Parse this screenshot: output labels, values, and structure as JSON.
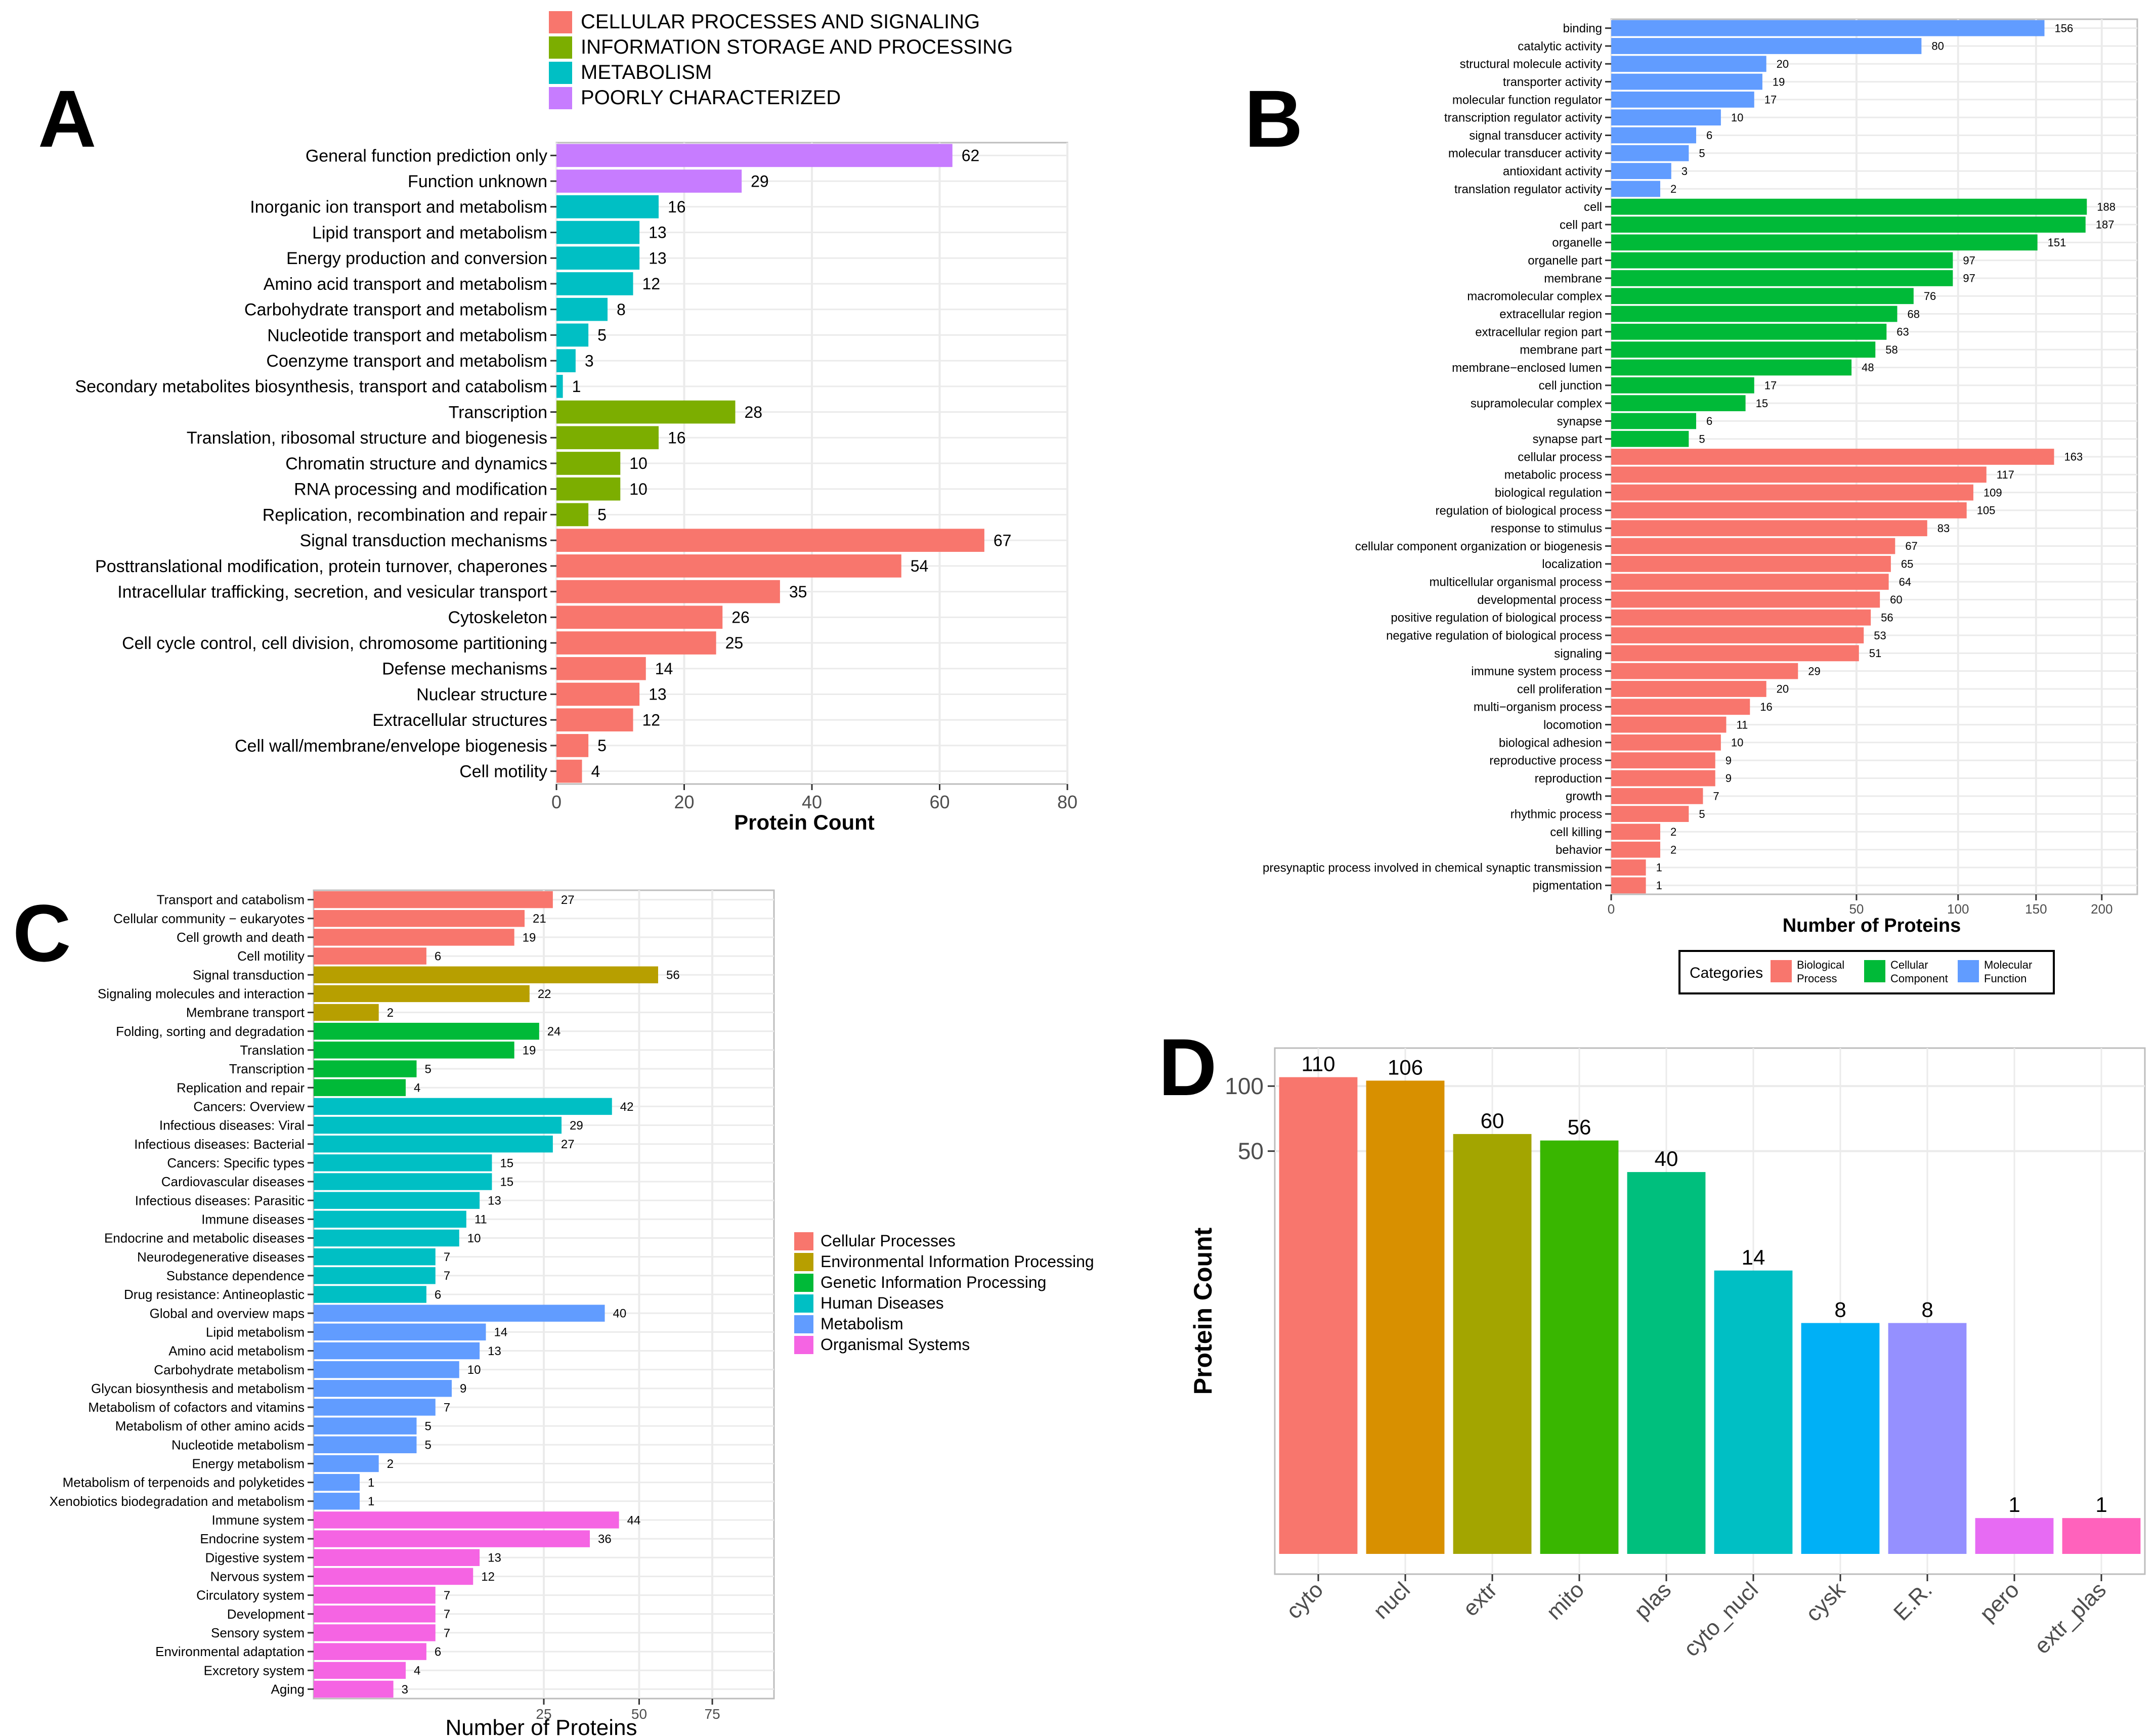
{
  "panel_labels": {
    "a": "A",
    "b": "B",
    "c": "C",
    "d": "D"
  },
  "colors": {
    "cellular": "#F8766D",
    "information": "#7CAE00",
    "metabolism": "#00BFC4",
    "poorly": "#C77CFF",
    "bio": "#F8766D",
    "cc": "#00BA38",
    "mf": "#619CFF",
    "c_cell": "#F8766D",
    "c_env": "#B79F00",
    "c_gen": "#00BA38",
    "c_hum": "#00BFC4",
    "c_met": "#619CFF",
    "c_org": "#F564E3",
    "d": [
      "#F8766D",
      "#D89000",
      "#A3A500",
      "#39B600",
      "#00BF7D",
      "#00BFC4",
      "#00B0F6",
      "#9590FF",
      "#E76BF3",
      "#FF62BC"
    ],
    "grid": "#EBEBEB",
    "frame": "#BDBDBD",
    "axis_text": "#4D4D4D"
  },
  "chart_data": [
    {
      "panel": "A",
      "type": "bar",
      "orientation": "horizontal",
      "xlabel": "Protein Count",
      "ylabel": "",
      "xlim": [
        0,
        80
      ],
      "xticks": [
        0,
        20,
        40,
        60,
        80
      ],
      "legend": [
        {
          "label": "CELLULAR PROCESSES AND SIGNALING",
          "color_key": "cellular"
        },
        {
          "label": "INFORMATION STORAGE AND PROCESSING",
          "color_key": "information"
        },
        {
          "label": "METABOLISM",
          "color_key": "metabolism"
        },
        {
          "label": "POORLY CHARACTERIZED",
          "color_key": "poorly"
        }
      ],
      "bars": [
        {
          "label": "General function prediction only",
          "value": 62,
          "group": "poorly"
        },
        {
          "label": "Function unknown",
          "value": 29,
          "group": "poorly"
        },
        {
          "label": "Inorganic ion transport and metabolism",
          "value": 16,
          "group": "metabolism"
        },
        {
          "label": "Lipid transport and metabolism",
          "value": 13,
          "group": "metabolism"
        },
        {
          "label": "Energy production and conversion",
          "value": 13,
          "group": "metabolism"
        },
        {
          "label": "Amino acid transport and metabolism",
          "value": 12,
          "group": "metabolism"
        },
        {
          "label": "Carbohydrate transport and metabolism",
          "value": 8,
          "group": "metabolism"
        },
        {
          "label": "Nucleotide transport and metabolism",
          "value": 5,
          "group": "metabolism"
        },
        {
          "label": "Coenzyme transport and metabolism",
          "value": 3,
          "group": "metabolism"
        },
        {
          "label": "Secondary metabolites biosynthesis, transport and catabolism",
          "value": 1,
          "group": "metabolism"
        },
        {
          "label": "Transcription",
          "value": 28,
          "group": "information"
        },
        {
          "label": "Translation, ribosomal structure and biogenesis",
          "value": 16,
          "group": "information"
        },
        {
          "label": "Chromatin structure and dynamics",
          "value": 10,
          "group": "information"
        },
        {
          "label": "RNA processing and modification",
          "value": 10,
          "group": "information"
        },
        {
          "label": "Replication, recombination and repair",
          "value": 5,
          "group": "information"
        },
        {
          "label": "Signal transduction mechanisms",
          "value": 67,
          "group": "cellular"
        },
        {
          "label": "Posttranslational modification, protein turnover, chaperones",
          "value": 54,
          "group": "cellular"
        },
        {
          "label": "Intracellular trafficking, secretion, and vesicular transport",
          "value": 35,
          "group": "cellular"
        },
        {
          "label": "Cytoskeleton",
          "value": 26,
          "group": "cellular"
        },
        {
          "label": "Cell cycle control, cell division, chromosome partitioning",
          "value": 25,
          "group": "cellular"
        },
        {
          "label": "Defense mechanisms",
          "value": 14,
          "group": "cellular"
        },
        {
          "label": "Nuclear structure",
          "value": 13,
          "group": "cellular"
        },
        {
          "label": "Extracellular structures",
          "value": 12,
          "group": "cellular"
        },
        {
          "label": "Cell wall/membrane/envelope biogenesis",
          "value": 5,
          "group": "cellular"
        },
        {
          "label": "Cell motility",
          "value": 4,
          "group": "cellular"
        }
      ]
    },
    {
      "panel": "B",
      "type": "bar",
      "orientation": "horizontal",
      "scale": "sqrt",
      "xlabel": "Number of Proteins",
      "ylabel": "",
      "xlim": [
        0,
        230
      ],
      "xticks": [
        0,
        50,
        100,
        150,
        200
      ],
      "legend_title": "Categories",
      "legend": [
        {
          "label": [
            "Biological",
            "Process"
          ],
          "color_key": "bio"
        },
        {
          "label": [
            "Cellular",
            "Component"
          ],
          "color_key": "cc"
        },
        {
          "label": [
            "Molecular",
            "Function"
          ],
          "color_key": "mf"
        }
      ],
      "bars": [
        {
          "label": "binding",
          "value": 156,
          "group": "mf"
        },
        {
          "label": "catalytic activity",
          "value": 80,
          "group": "mf"
        },
        {
          "label": "structural molecule activity",
          "value": 20,
          "group": "mf"
        },
        {
          "label": "transporter activity",
          "value": 19,
          "group": "mf"
        },
        {
          "label": "molecular function regulator",
          "value": 17,
          "group": "mf"
        },
        {
          "label": "transcription regulator activity",
          "value": 10,
          "group": "mf"
        },
        {
          "label": "signal transducer activity",
          "value": 6,
          "group": "mf"
        },
        {
          "label": "molecular transducer activity",
          "value": 5,
          "group": "mf"
        },
        {
          "label": "antioxidant activity",
          "value": 3,
          "group": "mf"
        },
        {
          "label": "translation regulator activity",
          "value": 2,
          "group": "mf"
        },
        {
          "label": "cell",
          "value": 188,
          "group": "cc"
        },
        {
          "label": "cell part",
          "value": 187,
          "group": "cc"
        },
        {
          "label": "organelle",
          "value": 151,
          "group": "cc"
        },
        {
          "label": "organelle part",
          "value": 97,
          "group": "cc"
        },
        {
          "label": "membrane",
          "value": 97,
          "group": "cc"
        },
        {
          "label": "macromolecular complex",
          "value": 76,
          "group": "cc"
        },
        {
          "label": "extracellular region",
          "value": 68,
          "group": "cc"
        },
        {
          "label": "extracellular region part",
          "value": 63,
          "group": "cc"
        },
        {
          "label": "membrane part",
          "value": 58,
          "group": "cc"
        },
        {
          "label": "membrane−enclosed lumen",
          "value": 48,
          "group": "cc"
        },
        {
          "label": "cell junction",
          "value": 17,
          "group": "cc"
        },
        {
          "label": "supramolecular complex",
          "value": 15,
          "group": "cc"
        },
        {
          "label": "synapse",
          "value": 6,
          "group": "cc"
        },
        {
          "label": "synapse part",
          "value": 5,
          "group": "cc"
        },
        {
          "label": "cellular process",
          "value": 163,
          "group": "bio"
        },
        {
          "label": "metabolic process",
          "value": 117,
          "group": "bio"
        },
        {
          "label": "biological regulation",
          "value": 109,
          "group": "bio"
        },
        {
          "label": "regulation of biological process",
          "value": 105,
          "group": "bio"
        },
        {
          "label": "response to stimulus",
          "value": 83,
          "group": "bio"
        },
        {
          "label": "cellular component organization or biogenesis",
          "value": 67,
          "group": "bio"
        },
        {
          "label": "localization",
          "value": 65,
          "group": "bio"
        },
        {
          "label": "multicellular organismal process",
          "value": 64,
          "group": "bio"
        },
        {
          "label": "developmental process",
          "value": 60,
          "group": "bio"
        },
        {
          "label": "positive regulation of biological process",
          "value": 56,
          "group": "bio"
        },
        {
          "label": "negative regulation of biological process",
          "value": 53,
          "group": "bio"
        },
        {
          "label": "signaling",
          "value": 51,
          "group": "bio"
        },
        {
          "label": "immune system process",
          "value": 29,
          "group": "bio"
        },
        {
          "label": "cell proliferation",
          "value": 20,
          "group": "bio"
        },
        {
          "label": "multi−organism process",
          "value": 16,
          "group": "bio"
        },
        {
          "label": "locomotion",
          "value": 11,
          "group": "bio"
        },
        {
          "label": "biological adhesion",
          "value": 10,
          "group": "bio"
        },
        {
          "label": "reproductive process",
          "value": 9,
          "group": "bio"
        },
        {
          "label": "reproduction",
          "value": 9,
          "group": "bio"
        },
        {
          "label": "growth",
          "value": 7,
          "group": "bio"
        },
        {
          "label": "rhythmic process",
          "value": 5,
          "group": "bio"
        },
        {
          "label": "cell killing",
          "value": 2,
          "group": "bio"
        },
        {
          "label": "behavior",
          "value": 2,
          "group": "bio"
        },
        {
          "label": "presynaptic process involved in chemical synaptic transmission",
          "value": 1,
          "group": "bio"
        },
        {
          "label": "pigmentation",
          "value": 1,
          "group": "bio"
        }
      ]
    },
    {
      "panel": "C",
      "type": "bar",
      "orientation": "horizontal",
      "scale": "sqrt",
      "xlabel": "Number of Proteins",
      "ylabel": "",
      "xlim": [
        0,
        100
      ],
      "xticks": [
        25,
        50,
        75
      ],
      "legend": [
        {
          "label": "Cellular Processes",
          "color_key": "c_cell"
        },
        {
          "label": "Environmental Information Processing",
          "color_key": "c_env"
        },
        {
          "label": "Genetic Information Processing",
          "color_key": "c_gen"
        },
        {
          "label": "Human Diseases",
          "color_key": "c_hum"
        },
        {
          "label": "Metabolism",
          "color_key": "c_met"
        },
        {
          "label": "Organismal Systems",
          "color_key": "c_org"
        }
      ],
      "bars": [
        {
          "label": "Transport and catabolism",
          "value": 27,
          "group": "c_cell"
        },
        {
          "label": "Cellular community − eukaryotes",
          "value": 21,
          "group": "c_cell"
        },
        {
          "label": "Cell growth and death",
          "value": 19,
          "group": "c_cell"
        },
        {
          "label": "Cell motility",
          "value": 6,
          "group": "c_cell"
        },
        {
          "label": "Signal transduction",
          "value": 56,
          "group": "c_env"
        },
        {
          "label": "Signaling molecules and interaction",
          "value": 22,
          "group": "c_env"
        },
        {
          "label": "Membrane transport",
          "value": 2,
          "group": "c_env"
        },
        {
          "label": "Folding, sorting and degradation",
          "value": 24,
          "group": "c_gen"
        },
        {
          "label": "Translation",
          "value": 19,
          "group": "c_gen"
        },
        {
          "label": "Transcription",
          "value": 5,
          "group": "c_gen"
        },
        {
          "label": "Replication and repair",
          "value": 4,
          "group": "c_gen"
        },
        {
          "label": "Cancers: Overview",
          "value": 42,
          "group": "c_hum"
        },
        {
          "label": "Infectious diseases: Viral",
          "value": 29,
          "group": "c_hum"
        },
        {
          "label": "Infectious diseases: Bacterial",
          "value": 27,
          "group": "c_hum"
        },
        {
          "label": "Cancers: Specific types",
          "value": 15,
          "group": "c_hum"
        },
        {
          "label": "Cardiovascular diseases",
          "value": 15,
          "group": "c_hum"
        },
        {
          "label": "Infectious diseases: Parasitic",
          "value": 13,
          "group": "c_hum"
        },
        {
          "label": "Immune diseases",
          "value": 11,
          "group": "c_hum"
        },
        {
          "label": "Endocrine and metabolic diseases",
          "value": 10,
          "group": "c_hum"
        },
        {
          "label": "Neurodegenerative diseases",
          "value": 7,
          "group": "c_hum"
        },
        {
          "label": "Substance dependence",
          "value": 7,
          "group": "c_hum"
        },
        {
          "label": "Drug resistance: Antineoplastic",
          "value": 6,
          "group": "c_hum"
        },
        {
          "label": "Global and overview maps",
          "value": 40,
          "group": "c_met"
        },
        {
          "label": "Lipid metabolism",
          "value": 14,
          "group": "c_met"
        },
        {
          "label": "Amino acid metabolism",
          "value": 13,
          "group": "c_met"
        },
        {
          "label": "Carbohydrate metabolism",
          "value": 10,
          "group": "c_met"
        },
        {
          "label": "Glycan biosynthesis and metabolism",
          "value": 9,
          "group": "c_met"
        },
        {
          "label": "Metabolism of cofactors and vitamins",
          "value": 7,
          "group": "c_met"
        },
        {
          "label": "Metabolism of other amino acids",
          "value": 5,
          "group": "c_met"
        },
        {
          "label": "Nucleotide metabolism",
          "value": 5,
          "group": "c_met"
        },
        {
          "label": "Energy metabolism",
          "value": 2,
          "group": "c_met"
        },
        {
          "label": "Metabolism of terpenoids and polyketides",
          "value": 1,
          "group": "c_met"
        },
        {
          "label": "Xenobiotics biodegradation and metabolism",
          "value": 1,
          "group": "c_met"
        },
        {
          "label": "Immune system",
          "value": 44,
          "group": "c_org"
        },
        {
          "label": "Endocrine system",
          "value": 36,
          "group": "c_org"
        },
        {
          "label": "Digestive system",
          "value": 13,
          "group": "c_org"
        },
        {
          "label": "Nervous system",
          "value": 12,
          "group": "c_org"
        },
        {
          "label": "Circulatory system",
          "value": 7,
          "group": "c_org"
        },
        {
          "label": "Development",
          "value": 7,
          "group": "c_org"
        },
        {
          "label": "Sensory system",
          "value": 7,
          "group": "c_org"
        },
        {
          "label": "Environmental adaptation",
          "value": 6,
          "group": "c_org"
        },
        {
          "label": "Excretory system",
          "value": 4,
          "group": "c_org"
        },
        {
          "label": "Aging",
          "value": 3,
          "group": "c_org"
        }
      ]
    },
    {
      "panel": "D",
      "type": "bar",
      "orientation": "vertical",
      "scale": "log10",
      "xlabel": "",
      "ylabel": "Protein Count",
      "ylim": [
        0.55,
        150
      ],
      "yticks": [
        50,
        100
      ],
      "categories": [
        "cyto",
        "nucl",
        "extr",
        "mito",
        "plas",
        "cyto_nucl",
        "cysk",
        "E.R.",
        "pero",
        "extr_plas"
      ],
      "values": [
        110,
        106,
        60,
        56,
        40,
        14,
        8,
        8,
        1,
        1
      ]
    }
  ]
}
